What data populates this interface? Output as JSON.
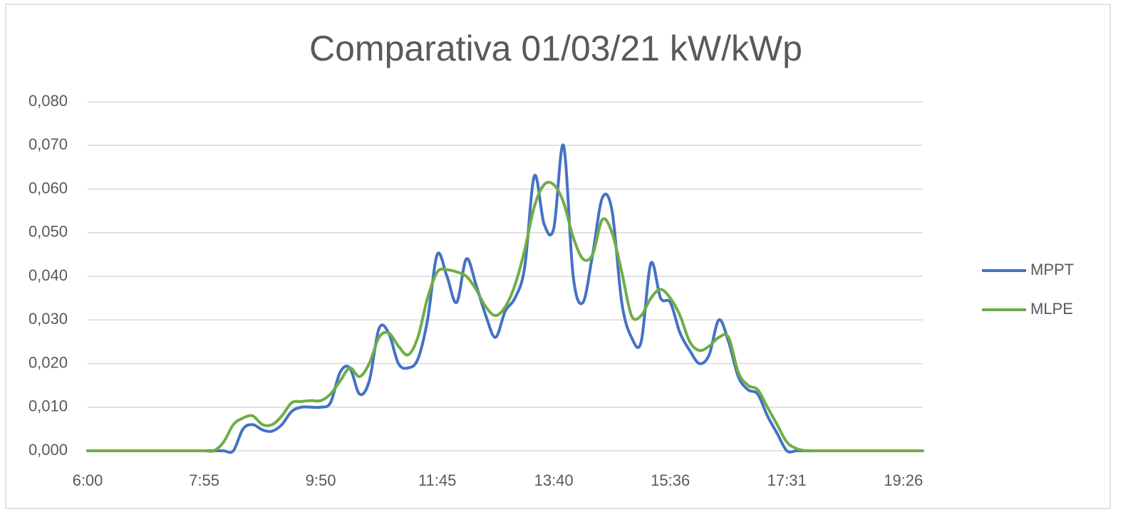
{
  "chart_data": {
    "type": "line",
    "title": "Comparativa 01/03/21 kW/kWp",
    "categories": [
      "6:00",
      null,
      null,
      null,
      null,
      null,
      null,
      null,
      null,
      null,
      null,
      null,
      "7:55",
      null,
      null,
      null,
      null,
      null,
      null,
      null,
      null,
      null,
      null,
      null,
      "9:50",
      null,
      null,
      null,
      null,
      null,
      null,
      null,
      null,
      null,
      null,
      null,
      "11:45",
      null,
      null,
      null,
      null,
      null,
      null,
      null,
      null,
      null,
      null,
      null,
      "13:40",
      null,
      null,
      null,
      null,
      null,
      null,
      null,
      null,
      null,
      null,
      null,
      "15:36",
      null,
      null,
      null,
      null,
      null,
      null,
      null,
      null,
      null,
      null,
      null,
      "17:31",
      null,
      null,
      null,
      null,
      null,
      null,
      null,
      null,
      null,
      null,
      null,
      "19:26",
      null,
      null
    ],
    "series": [
      {
        "name": "MPPT",
        "color": "#4472c4",
        "values": [
          0,
          0,
          0,
          0,
          0,
          0,
          0,
          0,
          0,
          0,
          0,
          0,
          0,
          0,
          0,
          0,
          0.005,
          0.006,
          0.0048,
          0.0045,
          0.006,
          0.009,
          0.01,
          0.01,
          0.01,
          0.011,
          0.018,
          0.019,
          0.013,
          0.016,
          0.028,
          0.027,
          0.02,
          0.019,
          0.021,
          0.03,
          0.045,
          0.04,
          0.034,
          0.044,
          0.038,
          0.031,
          0.026,
          0.032,
          0.035,
          0.042,
          0.063,
          0.052,
          0.051,
          0.07,
          0.04,
          0.034,
          0.045,
          0.058,
          0.055,
          0.034,
          0.026,
          0.025,
          0.043,
          0.035,
          0.034,
          0.027,
          0.023,
          0.02,
          0.022,
          0.03,
          0.025,
          0.017,
          0.014,
          0.013,
          0.008,
          0.004,
          0,
          0,
          0,
          0,
          0,
          0,
          0,
          0,
          0,
          0,
          0,
          0,
          0,
          0,
          0
        ]
      },
      {
        "name": "MLPE",
        "color": "#70ad47",
        "values": [
          0,
          0,
          0,
          0,
          0,
          0,
          0,
          0,
          0,
          0,
          0,
          0,
          0,
          0,
          0.002,
          0.006,
          0.0075,
          0.008,
          0.006,
          0.006,
          0.008,
          0.011,
          0.0113,
          0.0115,
          0.0115,
          0.013,
          0.016,
          0.019,
          0.017,
          0.02,
          0.026,
          0.027,
          0.024,
          0.022,
          0.026,
          0.035,
          0.041,
          0.0415,
          0.041,
          0.04,
          0.037,
          0.033,
          0.031,
          0.033,
          0.038,
          0.046,
          0.056,
          0.061,
          0.061,
          0.057,
          0.049,
          0.044,
          0.045,
          0.053,
          0.05,
          0.041,
          0.031,
          0.031,
          0.035,
          0.037,
          0.035,
          0.031,
          0.025,
          0.023,
          0.024,
          0.026,
          0.026,
          0.018,
          0.015,
          0.014,
          0.01,
          0.006,
          0.002,
          0.0005,
          0,
          0,
          0,
          0,
          0,
          0,
          0,
          0,
          0,
          0,
          0,
          0,
          0
        ]
      }
    ],
    "ylim": [
      0,
      0.08
    ],
    "yticks": [
      {
        "value": 0,
        "label": "0,000"
      },
      {
        "value": 0.01,
        "label": "0,010"
      },
      {
        "value": 0.02,
        "label": "0,020"
      },
      {
        "value": 0.03,
        "label": "0,030"
      },
      {
        "value": 0.04,
        "label": "0,040"
      },
      {
        "value": 0.05,
        "label": "0,050"
      },
      {
        "value": 0.06,
        "label": "0,060"
      },
      {
        "value": 0.07,
        "label": "0,070"
      },
      {
        "value": 0.08,
        "label": "0,080"
      }
    ],
    "grid": true,
    "legend": "right"
  }
}
